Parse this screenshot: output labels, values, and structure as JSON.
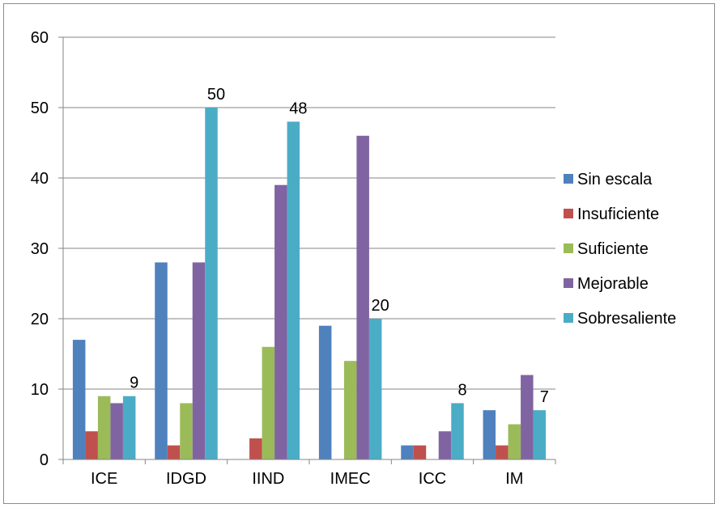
{
  "chart_data": {
    "type": "bar",
    "categories": [
      "ICE",
      "IDGD",
      "IIND",
      "IMEC",
      "ICC",
      "IM"
    ],
    "series": [
      {
        "name": "Sin escala",
        "color": "#4F81BD",
        "values": [
          17,
          28,
          0,
          19,
          2,
          7
        ]
      },
      {
        "name": "Insuficiente",
        "color": "#C0504D",
        "values": [
          4,
          2,
          3,
          0,
          2,
          2
        ]
      },
      {
        "name": "Suficiente",
        "color": "#9BBB59",
        "values": [
          9,
          8,
          16,
          14,
          0,
          5
        ]
      },
      {
        "name": "Mejorable",
        "color": "#8064A2",
        "values": [
          8,
          28,
          39,
          46,
          4,
          12
        ]
      },
      {
        "name": "Sobresaliente",
        "color": "#4BACC6",
        "values": [
          9,
          50,
          48,
          20,
          8,
          7
        ]
      }
    ],
    "data_labels": {
      "series": "Sobresaliente",
      "values": [
        "9",
        "50",
        "48",
        "20",
        "8",
        "7"
      ]
    },
    "y_ticks": [
      "0",
      "10",
      "20",
      "30",
      "40",
      "50",
      "60"
    ],
    "ylim": [
      0,
      60
    ],
    "grid": true,
    "legend_position": "right",
    "title": "",
    "xlabel": "",
    "ylabel": ""
  }
}
